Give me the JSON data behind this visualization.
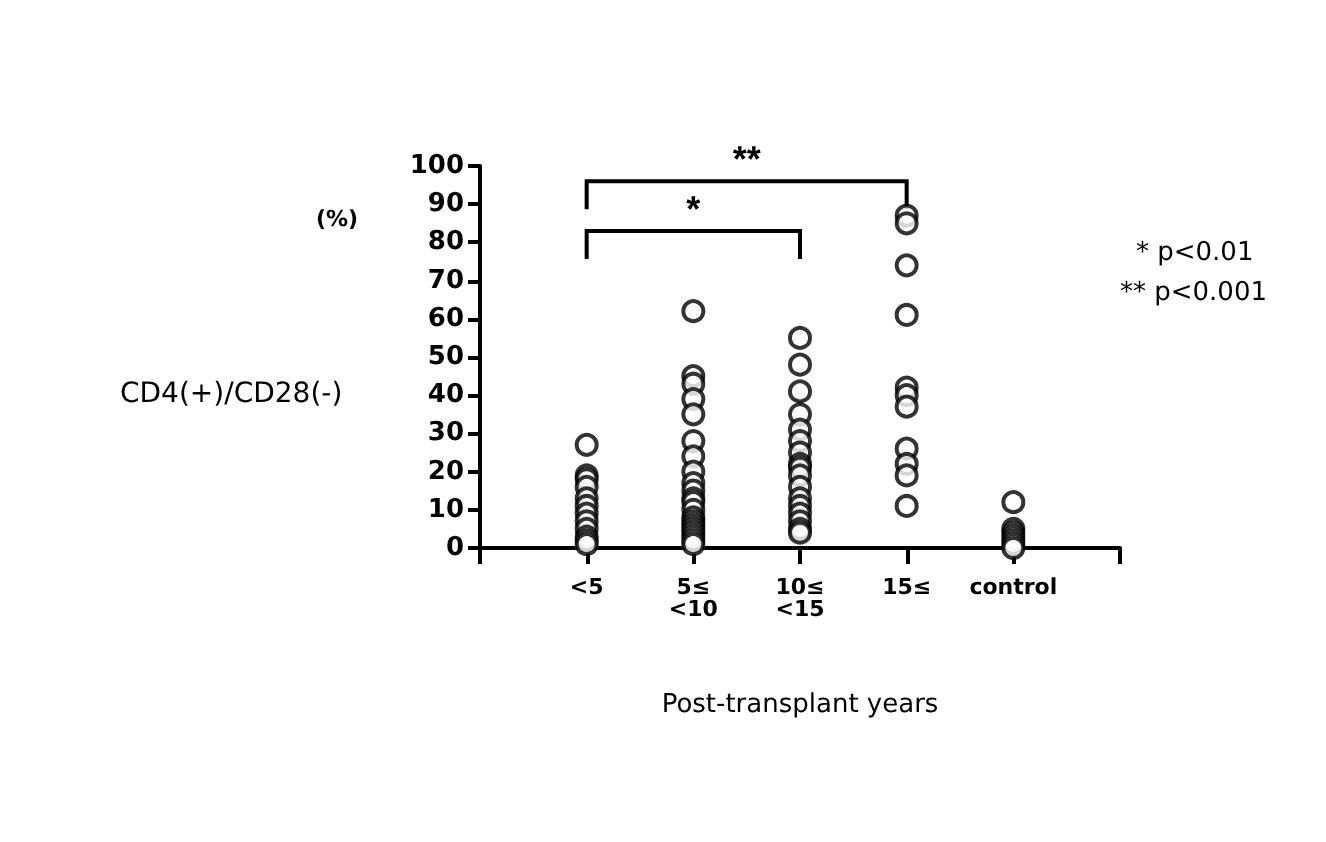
{
  "chart_data": {
    "type": "scatter",
    "ylabel": "CD4(+)/CD28(-)",
    "xlabel": "Post-transplant years",
    "categories": [
      null,
      "<5",
      "5≤\n<10",
      "10≤\n<15",
      "15≤",
      "control",
      null
    ],
    "series": [
      {
        "color": "#000000",
        "x": [
          "<5",
          "<5",
          "<5",
          "<5",
          "<5",
          "<5",
          "<5",
          "<5",
          "<5",
          "<5",
          "<5",
          "<5",
          "5≤\n<10",
          "5≤\n<10",
          "5≤\n<10",
          "5≤\n<10",
          "5≤\n<10",
          "5≤\n<10",
          "5≤\n<10",
          "5≤\n<10",
          "5≤\n<10",
          "5≤\n<10",
          "5≤\n<10",
          "5≤\n<10",
          "5≤\n<10",
          "5≤\n<10",
          "5≤\n<10",
          "5≤\n<10",
          "5≤\n<10",
          "5≤\n<10",
          "5≤\n<10",
          "5≤\n<10",
          "5≤\n<10",
          "10≤\n<15",
          "10≤\n<15",
          "10≤\n<15",
          "10≤\n<15",
          "10≤\n<15",
          "10≤\n<15",
          "10≤\n<15",
          "10≤\n<15",
          "10≤\n<15",
          "10≤\n<15",
          "10≤\n<15",
          "10≤\n<15",
          "10≤\n<15",
          "10≤\n<15",
          "10≤\n<15",
          "10≤\n<15",
          "10≤\n<15",
          "15≤",
          "15≤",
          "15≤",
          "15≤",
          "15≤",
          "15≤",
          "15≤",
          "15≤",
          "15≤",
          "15≤",
          "15≤",
          "control",
          "control",
          "control",
          "control",
          "control",
          "control",
          "control"
        ],
        "values": [
          27,
          19,
          18,
          16,
          13,
          11,
          9,
          7,
          5,
          3,
          2,
          1,
          62,
          45,
          43,
          39,
          35,
          28,
          24,
          20,
          17,
          15,
          13,
          12,
          10,
          8,
          7,
          6,
          5,
          4,
          3,
          2,
          1,
          55,
          48,
          41,
          35,
          31,
          28,
          25,
          22,
          21,
          19,
          16,
          13,
          11,
          9,
          7,
          5,
          4,
          87,
          85,
          74,
          61,
          42,
          40,
          37,
          26,
          22,
          19,
          11,
          12,
          5,
          4,
          3,
          2,
          1,
          0
        ]
      }
    ],
    "ylim": [
      0,
      100
    ],
    "yticks": [
      0,
      10,
      20,
      30,
      40,
      50,
      60,
      70,
      80,
      90,
      100
    ],
    "grid": false,
    "marker": "circle",
    "annotations": [
      "**",
      "*",
      "(%)",
      "* p<0.01",
      "** p<0.001"
    ]
  }
}
